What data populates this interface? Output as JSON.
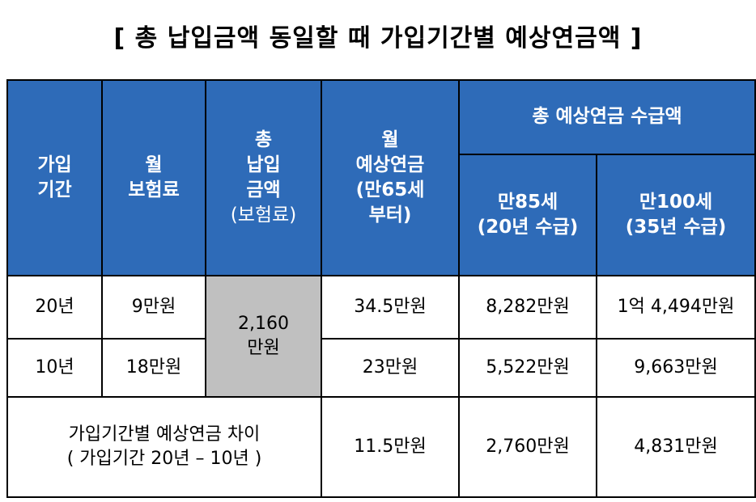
{
  "title": "[ 총 납입금액 동일할 때 가입기간별 예상연금액 ]",
  "colors": {
    "header_bg": "#2e6bb8",
    "header_text": "#ffffff",
    "merged_cell_bg": "#c0c0c0",
    "border": "#000000"
  },
  "headers": {
    "period": [
      "가입",
      "기간"
    ],
    "premium": [
      "월",
      "보험료"
    ],
    "total_paid": [
      "총",
      "납입",
      "금액",
      "(보험료)"
    ],
    "monthly_pension": [
      "월",
      "예상연금",
      "(만65세",
      "부터)"
    ],
    "total_pension": "총 예상연금 수급액",
    "age85": [
      "만85세",
      "(20년 수급)"
    ],
    "age100": [
      "만100세",
      "(35년 수급)"
    ]
  },
  "rows": [
    {
      "period": "20년",
      "premium": "9만원",
      "monthly_pension": "34.5만원",
      "age85": "8,282만원",
      "age100": "1억 4,494만원"
    },
    {
      "period": "10년",
      "premium": "18만원",
      "monthly_pension": "23만원",
      "age85": "5,522만원",
      "age100": "9,663만원"
    }
  ],
  "total_paid_shared": [
    "2,160",
    "만원"
  ],
  "difference": {
    "label": [
      "가입기간별 예상연금 차이",
      "( 가입기간 20년 – 10년 )"
    ],
    "monthly_pension": "11.5만원",
    "age85": "2,760만원",
    "age100": "4,831만원"
  }
}
